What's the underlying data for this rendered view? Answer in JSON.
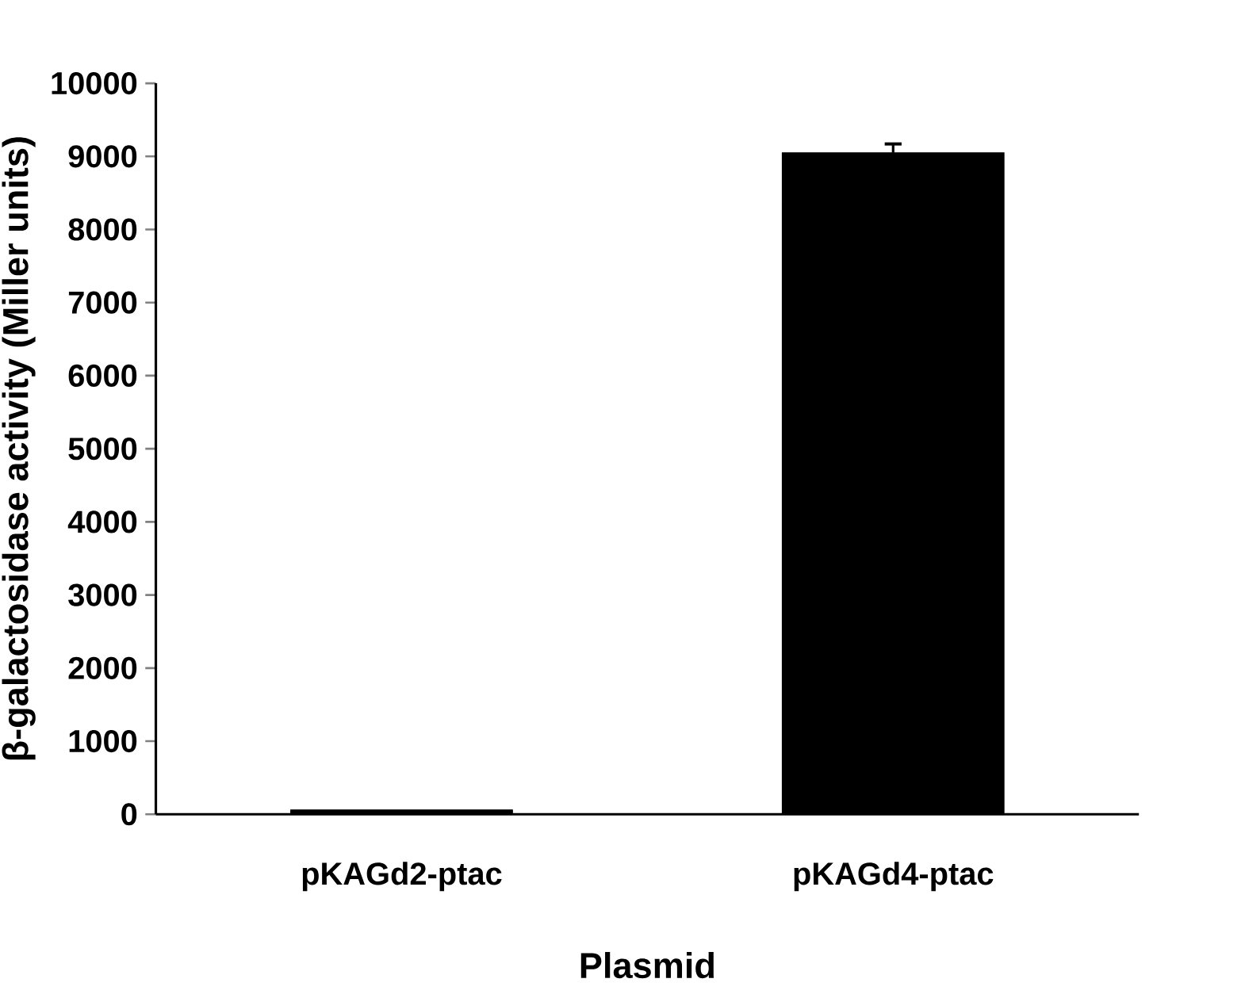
{
  "chart_data": {
    "type": "bar",
    "xlabel": "Plasmid",
    "ylabel": "β-galactosidase activity (Miller units)",
    "categories": [
      "pKAGd2-ptac",
      "pKAGd4-ptac"
    ],
    "values": [
      60,
      9050
    ],
    "errors": [
      null,
      120
    ],
    "color": "#000000",
    "ylim": [
      0,
      10000
    ],
    "yticks": [
      0,
      1000,
      2000,
      3000,
      4000,
      5000,
      6000,
      7000,
      8000,
      9000,
      10000
    ]
  }
}
